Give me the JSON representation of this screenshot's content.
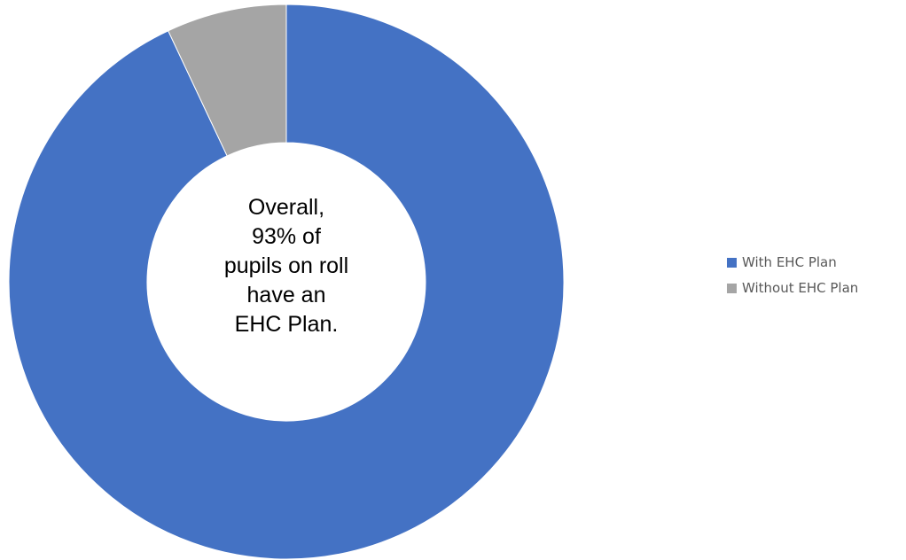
{
  "chart_data": {
    "type": "pie",
    "variant": "donut",
    "categories": [
      "With EHC Plan",
      "Without EHC Plan"
    ],
    "values": [
      93,
      7
    ],
    "colors": [
      "#4472C4",
      "#A5A5A5"
    ],
    "center_text": [
      "Overall,",
      "93% of",
      "pupils on roll",
      "have an",
      "EHC Plan."
    ],
    "legend": {
      "position": "right",
      "entries": [
        "With EHC Plan",
        "Without EHC Plan"
      ]
    }
  }
}
